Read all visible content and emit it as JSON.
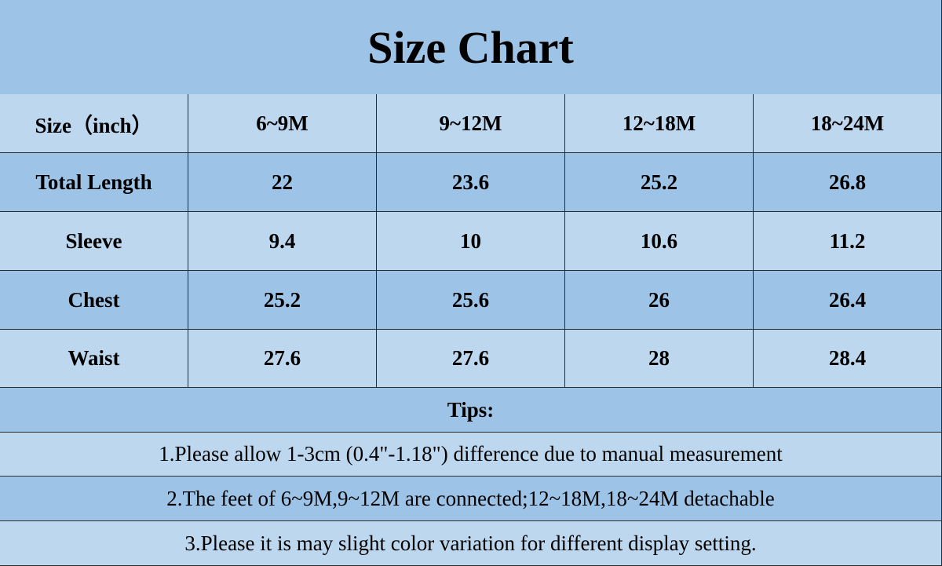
{
  "title": "Size Chart",
  "table": {
    "header": [
      "Size（inch）",
      "6~9M",
      "9~12M",
      "12~18M",
      "18~24M"
    ],
    "rows": [
      [
        "Total Length",
        "22",
        "23.6",
        "25.2",
        "26.8"
      ],
      [
        "Sleeve",
        "9.4",
        "10",
        "10.6",
        "11.2"
      ],
      [
        "Chest",
        "25.2",
        "25.6",
        "26",
        "26.4"
      ],
      [
        "Waist",
        "27.6",
        "27.6",
        "28",
        "28.4"
      ]
    ]
  },
  "tips": {
    "heading": "Tips:",
    "items": [
      "1.Please allow 1-3cm (0.4\"-1.18\") difference due to manual measurement",
      "2.The feet of 6~9M,9~12M are connected;12~18M,18~24M detachable",
      "3.Please it is may slight color variation for different display setting."
    ]
  }
}
